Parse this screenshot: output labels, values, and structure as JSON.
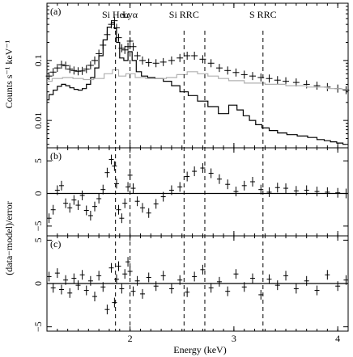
{
  "chart_data": {
    "type": "line",
    "xlabel": "Energy (keV)",
    "x_range": [
      1.2,
      4.1
    ],
    "x_ticks": [
      "2",
      "3",
      "4"
    ],
    "annotations": [
      {
        "label": "Si Heα",
        "x": 1.86
      },
      {
        "label": "Lyα",
        "x": 2.0
      },
      {
        "label": "Si RRC",
        "x": 2.52
      },
      {
        "label": "",
        "x": 2.72
      },
      {
        "label": "S RRC",
        "x": 3.28
      }
    ],
    "panels": [
      {
        "label": "(a)",
        "ylabel": "Counts s⁻¹ keV⁻¹",
        "yscale": "log",
        "ylim": [
          0.0035,
          0.9
        ],
        "y_ticks": [
          {
            "value": 0.01,
            "label": "0.01"
          },
          {
            "value": 0.1,
            "label": "0.1"
          }
        ],
        "series": [
          {
            "role": "data",
            "x": [
              1.22,
              1.26,
              1.3,
              1.34,
              1.38,
              1.42,
              1.46,
              1.5,
              1.54,
              1.58,
              1.62,
              1.66,
              1.7,
              1.74,
              1.78,
              1.82,
              1.85,
              1.87,
              1.89,
              1.92,
              1.95,
              1.98,
              2.0,
              2.03,
              2.07,
              2.12,
              2.18,
              2.25,
              2.32,
              2.4,
              2.48,
              2.55,
              2.62,
              2.7,
              2.78,
              2.86,
              2.94,
              3.02,
              3.1,
              3.18,
              3.26,
              3.34,
              3.42,
              3.5,
              3.6,
              3.7,
              3.8,
              3.9,
              4.0,
              4.08
            ],
            "y": [
              0.055,
              0.064,
              0.075,
              0.085,
              0.082,
              0.072,
              0.068,
              0.066,
              0.067,
              0.072,
              0.083,
              0.1,
              0.13,
              0.18,
              0.27,
              0.4,
              0.46,
              0.35,
              0.24,
              0.16,
              0.15,
              0.17,
              0.21,
              0.17,
              0.12,
              0.1,
              0.092,
              0.09,
              0.094,
              0.1,
              0.11,
              0.12,
              0.12,
              0.105,
              0.09,
              0.075,
              0.068,
              0.063,
              0.058,
              0.055,
              0.052,
              0.05,
              0.047,
              0.045,
              0.043,
              0.04,
              0.038,
              0.036,
              0.034,
              0.032
            ]
          },
          {
            "role": "model",
            "color": "#000000",
            "x": [
              1.2,
              1.24,
              1.28,
              1.32,
              1.36,
              1.4,
              1.44,
              1.48,
              1.52,
              1.56,
              1.6,
              1.64,
              1.68,
              1.72,
              1.76,
              1.8,
              1.84,
              1.86,
              1.88,
              1.92,
              1.96,
              2.0,
              2.04,
              2.08,
              2.14,
              2.2,
              2.28,
              2.36,
              2.44,
              2.52,
              2.6,
              2.7,
              2.8,
              2.9,
              3.0,
              3.06,
              3.12,
              3.18,
              3.24,
              3.3,
              3.38,
              3.46,
              3.56,
              3.66,
              3.76,
              3.84,
              3.9,
              3.96,
              4.02,
              4.08
            ],
            "y": [
              0.022,
              0.027,
              0.032,
              0.037,
              0.04,
              0.038,
              0.035,
              0.033,
              0.032,
              0.034,
              0.04,
              0.052,
              0.075,
              0.12,
              0.22,
              0.36,
              0.43,
              0.34,
              0.2,
              0.11,
              0.1,
              0.14,
              0.1,
              0.065,
              0.055,
              0.052,
              0.05,
              0.045,
              0.038,
              0.03,
              0.026,
              0.021,
              0.017,
              0.013,
              0.018,
              0.015,
              0.012,
              0.01,
              0.0085,
              0.0075,
              0.0068,
              0.0062,
              0.0058,
              0.0055,
              0.0052,
              0.0048,
              0.0046,
              0.0044,
              0.0042,
              0.004
            ]
          },
          {
            "role": "background",
            "color": "#b0b0b0",
            "x": [
              1.2,
              1.3,
              1.4,
              1.5,
              1.6,
              1.7,
              1.8,
              1.86,
              1.92,
              2.0,
              2.1,
              2.2,
              2.3,
              2.4,
              2.5,
              2.6,
              2.7,
              2.8,
              2.9,
              3.0,
              3.2,
              3.4,
              3.6,
              3.8,
              4.0,
              4.08
            ],
            "y": [
              0.045,
              0.05,
              0.052,
              0.05,
              0.048,
              0.05,
              0.06,
              0.07,
              0.055,
              0.06,
              0.052,
              0.05,
              0.05,
              0.052,
              0.058,
              0.065,
              0.06,
              0.055,
              0.05,
              0.046,
              0.042,
              0.04,
              0.038,
              0.036,
              0.034,
              0.033
            ]
          }
        ]
      },
      {
        "label": "(b)",
        "ylim": [
          -6.5,
          7
        ],
        "y_ticks": [
          {
            "value": -5,
            "label": "−5"
          },
          {
            "value": 0,
            "label": "0"
          },
          {
            "value": 5,
            "label": "5"
          }
        ],
        "residuals": {
          "x": [
            1.22,
            1.26,
            1.3,
            1.34,
            1.38,
            1.42,
            1.46,
            1.5,
            1.54,
            1.58,
            1.62,
            1.66,
            1.7,
            1.74,
            1.78,
            1.82,
            1.85,
            1.87,
            1.89,
            1.92,
            1.95,
            1.98,
            2.0,
            2.03,
            2.07,
            2.12,
            2.18,
            2.25,
            2.32,
            2.4,
            2.48,
            2.55,
            2.62,
            2.7,
            2.78,
            2.86,
            2.94,
            3.02,
            3.1,
            3.18,
            3.26,
            3.34,
            3.42,
            3.5,
            3.6,
            3.7,
            3.8,
            3.9,
            4.0,
            4.08
          ],
          "y": [
            -3.8,
            -2.5,
            0.5,
            1.2,
            -1.5,
            -2.2,
            -1.0,
            -1.8,
            -0.3,
            -2.6,
            -3.4,
            -2.0,
            -0.8,
            0.6,
            3.2,
            5.2,
            4.2,
            1.5,
            -2.5,
            -3.8,
            -1.5,
            1.0,
            2.8,
            0.8,
            -1.2,
            -2.2,
            -3.0,
            -1.6,
            -0.5,
            0.5,
            1.0,
            2.6,
            3.4,
            3.9,
            3.1,
            2.2,
            1.4,
            0.3,
            1.2,
            1.8,
            0.6,
            0.2,
            0.9,
            0.8,
            0.4,
            0.5,
            0.3,
            0.2,
            0.1,
            0.0
          ]
        }
      },
      {
        "label": "(c)",
        "ylabel": "(data−model)/error",
        "ylim": [
          -5.5,
          5.5
        ],
        "y_ticks": [
          {
            "value": -5,
            "label": "−5"
          },
          {
            "value": 0,
            "label": "0"
          },
          {
            "value": 5,
            "label": "5"
          }
        ],
        "residuals": {
          "x": [
            1.22,
            1.26,
            1.3,
            1.34,
            1.38,
            1.42,
            1.46,
            1.5,
            1.54,
            1.58,
            1.62,
            1.66,
            1.7,
            1.74,
            1.78,
            1.82,
            1.85,
            1.87,
            1.89,
            1.92,
            1.95,
            1.98,
            2.0,
            2.03,
            2.07,
            2.12,
            2.18,
            2.25,
            2.32,
            2.4,
            2.48,
            2.55,
            2.62,
            2.7,
            2.78,
            2.86,
            2.94,
            3.02,
            3.1,
            3.18,
            3.26,
            3.34,
            3.42,
            3.5,
            3.6,
            3.7,
            3.8,
            3.9,
            4.0,
            4.08
          ],
          "y": [
            0.8,
            -0.5,
            1.2,
            -0.7,
            0.4,
            -1.1,
            0.6,
            -0.2,
            1.0,
            -0.8,
            0.3,
            -1.5,
            0.9,
            -0.4,
            -3.0,
            1.8,
            -2.2,
            0.5,
            2.0,
            -0.6,
            1.1,
            2.5,
            1.4,
            -0.9,
            0.3,
            -1.2,
            0.7,
            -0.3,
            0.9,
            -0.6,
            0.4,
            -1.0,
            0.8,
            1.6,
            -0.5,
            0.2,
            -0.9,
            1.1,
            -0.4,
            0.6,
            -1.3,
            0.5,
            -0.2,
            0.9,
            -0.6,
            0.3,
            -0.8,
            1.0,
            -0.3,
            0.4
          ]
        }
      }
    ]
  }
}
